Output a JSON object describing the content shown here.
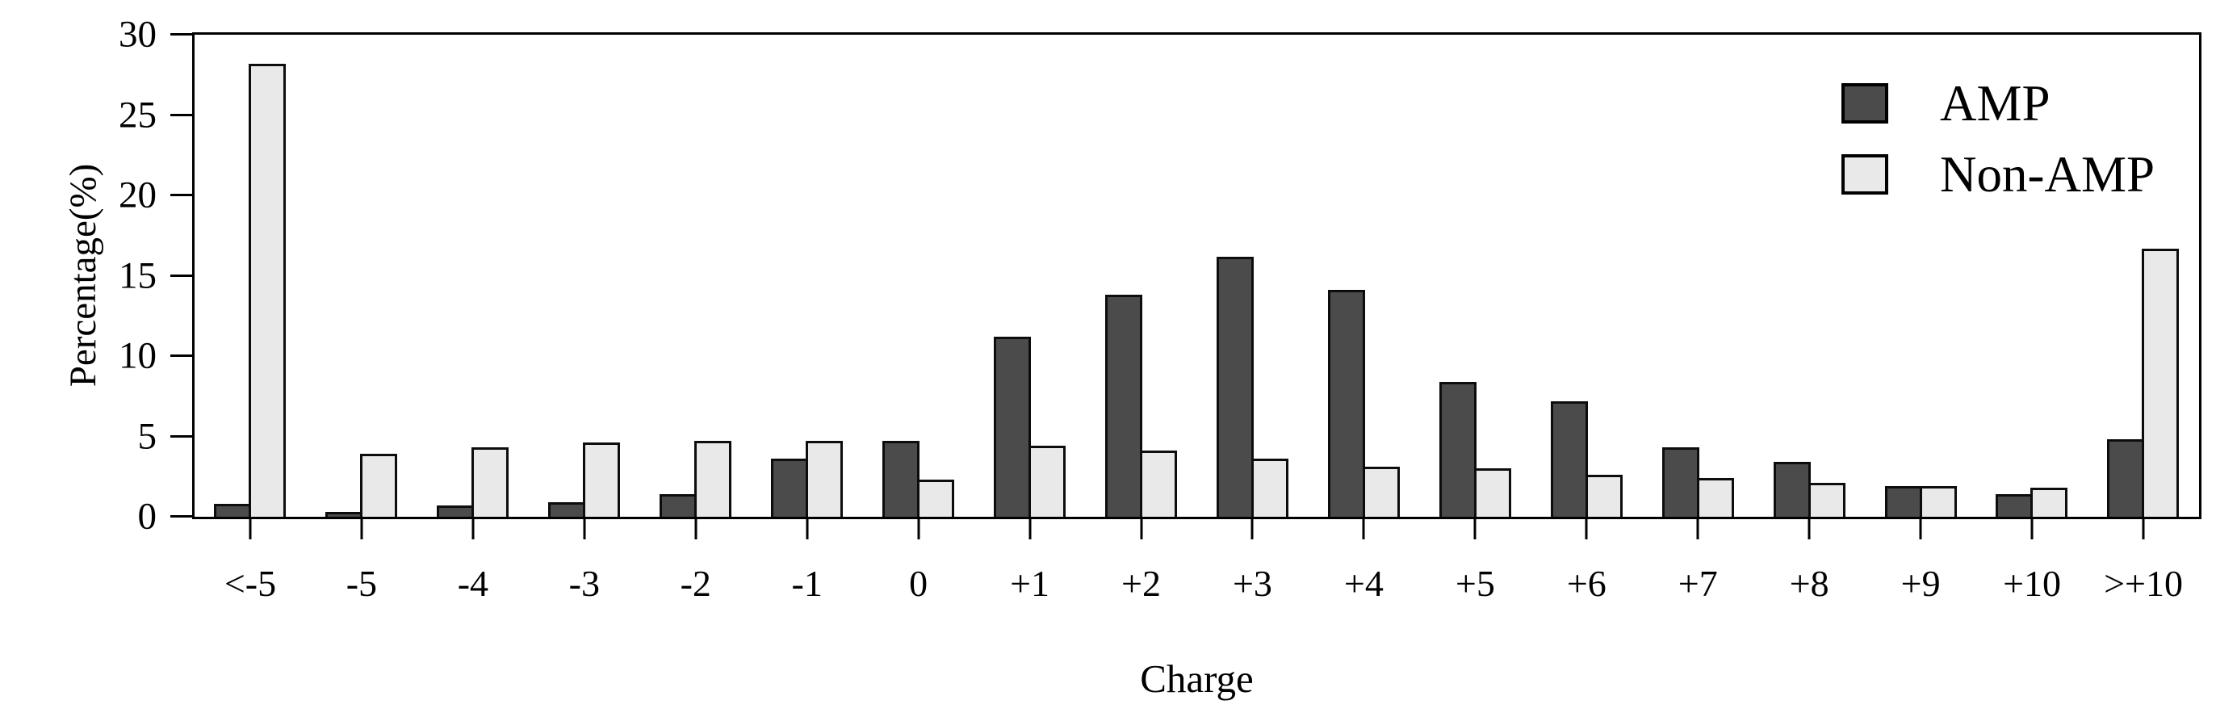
{
  "figure": {
    "x_axis_title": "Charge",
    "y_axis_title": "Percentage(%)"
  },
  "chart_data": {
    "type": "bar",
    "title": "",
    "xlabel": "Charge",
    "ylabel": "Percentage(%)",
    "categories": [
      "<-5",
      "-5",
      "-4",
      "-3",
      "-2",
      "-1",
      "0",
      "+1",
      "+2",
      "+3",
      "+4",
      "+5",
      "+6",
      "+7",
      "+8",
      "+9",
      "+10",
      ">+10"
    ],
    "series": [
      {
        "name": "AMP",
        "color": "#4b4b4b",
        "values": [
          0.8,
          0.3,
          0.7,
          0.9,
          1.4,
          3.6,
          4.7,
          11.2,
          13.8,
          16.2,
          14.1,
          8.4,
          7.2,
          4.3,
          3.4,
          1.9,
          1.4,
          4.8
        ]
      },
      {
        "name": "Non-AMP",
        "color": "#e9e9e9",
        "values": [
          28.2,
          3.9,
          4.3,
          4.6,
          4.7,
          4.7,
          2.3,
          4.4,
          4.1,
          3.6,
          3.1,
          3.0,
          2.6,
          2.4,
          2.1,
          1.9,
          1.8,
          16.7
        ]
      }
    ],
    "ylim": [
      0,
      30
    ],
    "y_ticks": [
      0,
      5,
      10,
      15,
      20,
      25,
      30
    ],
    "grid": false,
    "legend_position": "top-right-inside"
  }
}
